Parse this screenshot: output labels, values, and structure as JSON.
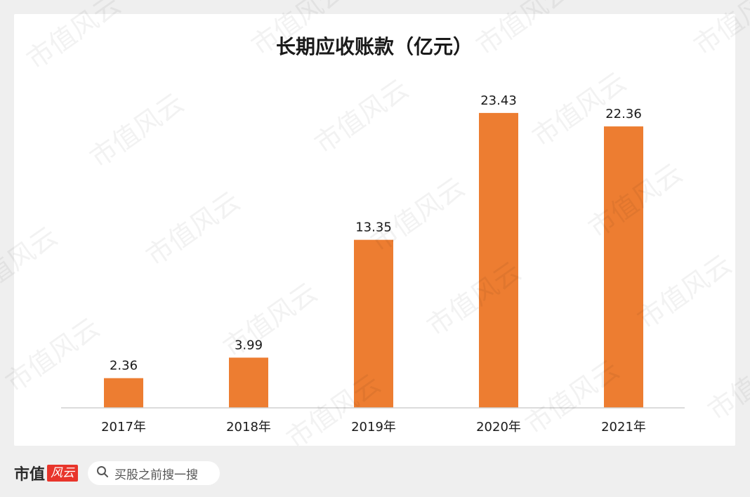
{
  "chart_data": {
    "type": "bar",
    "title": "长期应收账款（亿元）",
    "categories": [
      "2017年",
      "2018年",
      "2019年",
      "2020年",
      "2021年"
    ],
    "values": [
      2.36,
      3.99,
      13.35,
      23.43,
      22.36
    ],
    "data_labels": [
      "2.36",
      "3.99",
      "13.35",
      "23.43",
      "22.36"
    ],
    "xlabel": "",
    "ylabel": "",
    "ylim": [
      0,
      25
    ],
    "grid": false,
    "legend": "none",
    "bar_color": "#ED7D31"
  },
  "watermark": {
    "text": "市值风云"
  },
  "footer": {
    "brand_text": "市值",
    "brand_seal": "风云",
    "search_icon": "search-icon",
    "search_text": "买股之前搜一搜"
  }
}
